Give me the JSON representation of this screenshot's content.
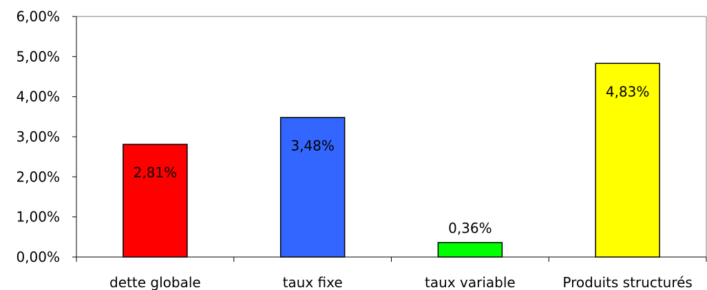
{
  "chart_data": {
    "type": "bar",
    "title": "",
    "xlabel": "",
    "ylabel": "",
    "categories": [
      "dette globale",
      "taux fixe",
      "taux variable",
      "Produits structurés"
    ],
    "values": [
      2.81,
      3.48,
      0.36,
      4.83
    ],
    "value_labels": [
      "2,81%",
      "3,48%",
      "0,36%",
      "4,83%"
    ],
    "label_position": [
      "inside",
      "inside",
      "above",
      "inside"
    ],
    "colors": [
      "#ff0000",
      "#3366ff",
      "#00ff00",
      "#ffff00"
    ],
    "ylim": [
      0,
      6
    ],
    "yticks": [
      0,
      1,
      2,
      3,
      4,
      5,
      6
    ],
    "ytick_labels": [
      "0,00%",
      "1,00%",
      "2,00%",
      "3,00%",
      "4,00%",
      "5,00%",
      "6,00%"
    ],
    "grid": false,
    "legend": "none",
    "plot_background": "#ffffff",
    "bar_outline": "#000000"
  }
}
